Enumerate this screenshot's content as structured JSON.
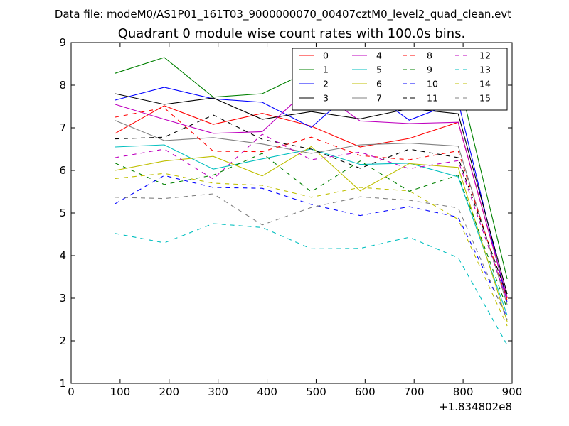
{
  "suptitle": "Data file: modeM0/AS1P01_161T03_9000000070_00407cztM0_level2_quad_clean.evt",
  "chart_data": {
    "type": "line",
    "title": "Quadrant 0 module wise count rates with 100.0s bins.",
    "xlabel": "",
    "ylabel": "",
    "x_offset_label": "+1.834802e8",
    "xlim": [
      0,
      900
    ],
    "ylim": [
      1,
      9
    ],
    "x_ticks": [
      0,
      100,
      200,
      300,
      400,
      500,
      600,
      700,
      800,
      900
    ],
    "y_ticks": [
      1,
      2,
      3,
      4,
      5,
      6,
      7,
      8,
      9
    ],
    "grid": false,
    "legend_position": "top-right",
    "legend_columns": 4,
    "x": [
      90,
      190,
      290,
      390,
      490,
      590,
      690,
      790,
      890
    ],
    "series": [
      {
        "name": "0",
        "color": "#ff0000",
        "dash": "solid",
        "values": [
          6.87,
          7.52,
          7.08,
          7.34,
          7.04,
          6.55,
          6.75,
          7.13,
          3.0
        ]
      },
      {
        "name": "1",
        "color": "#008000",
        "dash": "solid",
        "values": [
          8.28,
          8.65,
          7.72,
          7.8,
          8.35,
          8.12,
          8.55,
          8.2,
          3.45
        ]
      },
      {
        "name": "2",
        "color": "#0000ff",
        "dash": "solid",
        "values": [
          7.65,
          7.95,
          7.68,
          7.6,
          7.01,
          8.02,
          7.18,
          7.62,
          2.9
        ]
      },
      {
        "name": "3",
        "color": "#000000",
        "dash": "solid",
        "values": [
          7.8,
          7.55,
          7.7,
          7.2,
          7.38,
          7.21,
          7.45,
          7.33,
          3.1
        ]
      },
      {
        "name": "4",
        "color": "#bf00bf",
        "dash": "solid",
        "values": [
          7.55,
          7.2,
          6.87,
          6.91,
          7.98,
          7.16,
          7.1,
          7.13,
          3.02
        ]
      },
      {
        "name": "5",
        "color": "#00bfbf",
        "dash": "solid",
        "values": [
          6.55,
          6.6,
          6.03,
          6.27,
          6.5,
          6.14,
          6.17,
          5.85,
          2.6
        ]
      },
      {
        "name": "6",
        "color": "#bfbf00",
        "dash": "solid",
        "values": [
          6.0,
          6.22,
          6.33,
          5.87,
          6.56,
          5.52,
          6.16,
          6.07,
          2.45
        ]
      },
      {
        "name": "7",
        "color": "#808080",
        "dash": "solid",
        "values": [
          7.17,
          6.7,
          6.77,
          6.62,
          6.4,
          6.6,
          6.64,
          6.57,
          2.85
        ]
      },
      {
        "name": "8",
        "color": "#ff0000",
        "dash": "dashed",
        "values": [
          7.25,
          7.47,
          6.45,
          6.44,
          6.78,
          6.35,
          6.25,
          6.46,
          2.95
        ]
      },
      {
        "name": "9",
        "color": "#008000",
        "dash": "dashed",
        "values": [
          6.17,
          5.67,
          5.89,
          6.4,
          5.5,
          6.22,
          5.51,
          5.89,
          2.75
        ]
      },
      {
        "name": "10",
        "color": "#0000ff",
        "dash": "dashed",
        "values": [
          5.22,
          5.88,
          5.6,
          5.58,
          5.2,
          4.94,
          5.15,
          4.9,
          2.55
        ]
      },
      {
        "name": "11",
        "color": "#000000",
        "dash": "dashed",
        "values": [
          6.74,
          6.78,
          7.3,
          6.73,
          6.5,
          6.05,
          6.5,
          6.3,
          3.05
        ]
      },
      {
        "name": "12",
        "color": "#bf00bf",
        "dash": "dashed",
        "values": [
          6.3,
          6.5,
          5.8,
          6.85,
          6.25,
          6.43,
          6.04,
          6.23,
          2.95
        ]
      },
      {
        "name": "13",
        "color": "#00bfbf",
        "dash": "dashed",
        "values": [
          4.52,
          4.3,
          4.75,
          4.66,
          4.16,
          4.17,
          4.43,
          3.95,
          1.9
        ]
      },
      {
        "name": "14",
        "color": "#bfbf00",
        "dash": "dashed",
        "values": [
          5.81,
          5.93,
          5.7,
          5.65,
          5.37,
          5.6,
          5.52,
          4.85,
          2.35
        ]
      },
      {
        "name": "15",
        "color": "#808080",
        "dash": "dashed",
        "values": [
          5.37,
          5.34,
          5.45,
          4.72,
          5.13,
          5.38,
          5.3,
          5.12,
          2.5
        ]
      }
    ]
  }
}
